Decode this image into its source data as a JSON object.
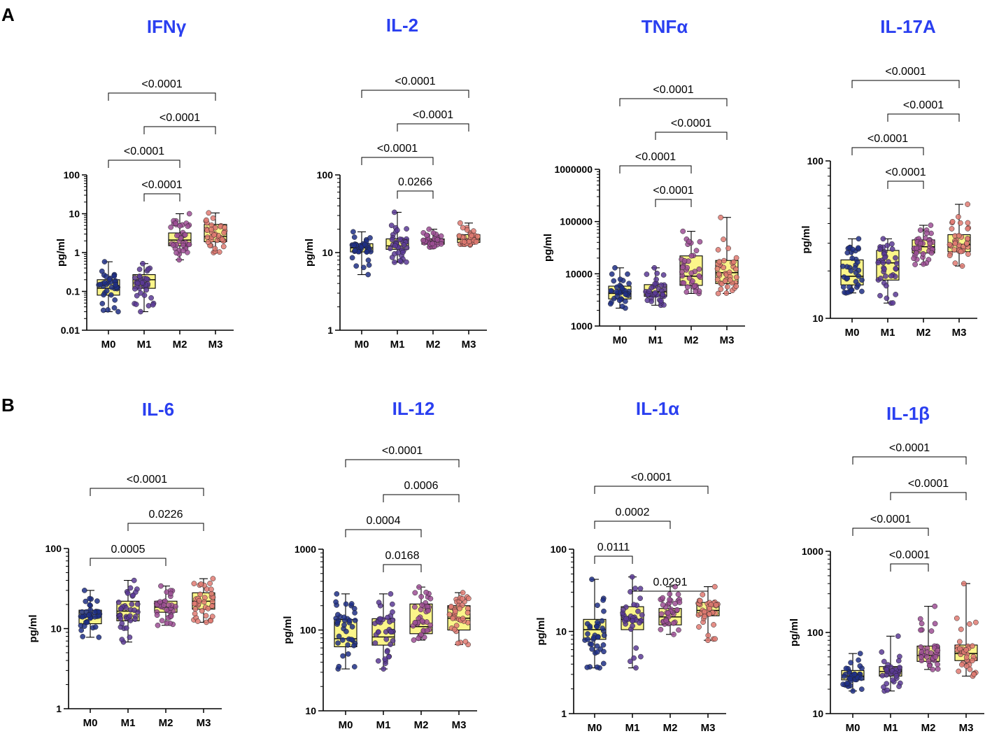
{
  "panels": [
    {
      "letter": "A"
    },
    {
      "letter": "B"
    }
  ],
  "chart_data": [
    {
      "type": "box",
      "title": "IFNγ",
      "ylabel": "pg/ml",
      "yscale": "log",
      "ylim": [
        0.01,
        100
      ],
      "yticks": [
        0.01,
        0.1,
        1,
        10,
        100
      ],
      "ytick_labels": [
        "0.01",
        "0.1",
        "1",
        "10",
        "100"
      ],
      "categories": [
        "M0",
        "M1",
        "M2",
        "M3"
      ],
      "boxes": [
        {
          "min": 0.03,
          "q1": 0.08,
          "median": 0.12,
          "q3": 0.2,
          "max": 0.58
        },
        {
          "min": 0.03,
          "q1": 0.12,
          "median": 0.2,
          "q3": 0.27,
          "max": 0.52
        },
        {
          "min": 0.65,
          "q1": 1.5,
          "median": 2.1,
          "q3": 3.2,
          "max": 10
        },
        {
          "min": 1.0,
          "q1": 1.9,
          "median": 2.6,
          "q3": 5.3,
          "max": 10.5
        }
      ],
      "comparisons": [
        {
          "from": "M0",
          "to": "M3",
          "p": "<0.0001"
        },
        {
          "from": "M1",
          "to": "M3",
          "p": "<0.0001"
        },
        {
          "from": "M0",
          "to": "M2",
          "p": "<0.0001"
        },
        {
          "from": "M1",
          "to": "M2",
          "p": "<0.0001"
        }
      ]
    },
    {
      "type": "box",
      "title": "IL-2",
      "ylabel": "pg/ml",
      "yscale": "log",
      "ylim": [
        1,
        100
      ],
      "yticks": [
        1,
        10,
        100
      ],
      "ytick_labels": [
        "1",
        "10",
        "100"
      ],
      "categories": [
        "M0",
        "M1",
        "M2",
        "M3"
      ],
      "boxes": [
        {
          "min": 5.2,
          "q1": 10.2,
          "median": 11.5,
          "q3": 13,
          "max": 18.5
        },
        {
          "min": 7.5,
          "q1": 11,
          "median": 12.2,
          "q3": 15,
          "max": 33
        },
        {
          "min": 11.8,
          "q1": 12.8,
          "median": 13.8,
          "q3": 15,
          "max": 20
        },
        {
          "min": 12.5,
          "q1": 13.5,
          "median": 14.8,
          "q3": 17,
          "max": 24
        }
      ],
      "comparisons": [
        {
          "from": "M0",
          "to": "M3",
          "p": "<0.0001"
        },
        {
          "from": "M1",
          "to": "M3",
          "p": "<0.0001"
        },
        {
          "from": "M0",
          "to": "M2",
          "p": "<0.0001"
        },
        {
          "from": "M1",
          "to": "M2",
          "p": "0.0266"
        }
      ]
    },
    {
      "type": "box",
      "title": "TNFα",
      "ylabel": "pg/ml",
      "yscale": "log",
      "ylim": [
        1000,
        1000000
      ],
      "yticks": [
        1000,
        10000,
        100000,
        1000000
      ],
      "ytick_labels": [
        "1000",
        "10000",
        "100000",
        "1000000"
      ],
      "categories": [
        "M0",
        "M1",
        "M2",
        "M3"
      ],
      "boxes": [
        {
          "min": 2200,
          "q1": 3300,
          "median": 4200,
          "q3": 5800,
          "max": 13000
        },
        {
          "min": 2500,
          "q1": 3700,
          "median": 4500,
          "q3": 6200,
          "max": 13000
        },
        {
          "min": 4200,
          "q1": 6000,
          "median": 9000,
          "q3": 22000,
          "max": 65000
        },
        {
          "min": 4200,
          "q1": 6500,
          "median": 10500,
          "q3": 18000,
          "max": 120000
        }
      ],
      "comparisons": [
        {
          "from": "M0",
          "to": "M3",
          "p": "<0.0001"
        },
        {
          "from": "M1",
          "to": "M3",
          "p": "<0.0001"
        },
        {
          "from": "M0",
          "to": "M2",
          "p": "<0.0001"
        },
        {
          "from": "M1",
          "to": "M2",
          "p": "<0.0001"
        }
      ]
    },
    {
      "type": "box",
      "title": "IL-17A",
      "ylabel": "pg/ml",
      "yscale": "log",
      "ylim": [
        10,
        100
      ],
      "yticks": [
        10,
        100
      ],
      "ytick_labels": [
        "10",
        "100"
      ],
      "categories": [
        "M0",
        "M1",
        "M2",
        "M3"
      ],
      "boxes": [
        {
          "min": 14.5,
          "q1": 16.3,
          "median": 18.5,
          "q3": 23.5,
          "max": 32
        },
        {
          "min": 12.5,
          "q1": 17.5,
          "median": 22.5,
          "q3": 27,
          "max": 32
        },
        {
          "min": 22,
          "q1": 26,
          "median": 28.5,
          "q3": 31.5,
          "max": 39
        },
        {
          "min": 21.5,
          "q1": 26.5,
          "median": 29.5,
          "q3": 34,
          "max": 53
        }
      ],
      "comparisons": [
        {
          "from": "M0",
          "to": "M3",
          "p": "<0.0001"
        },
        {
          "from": "M1",
          "to": "M3",
          "p": "<0.0001"
        },
        {
          "from": "M0",
          "to": "M2",
          "p": "<0.0001"
        },
        {
          "from": "M1",
          "to": "M2",
          "p": "<0.0001"
        }
      ]
    },
    {
      "type": "box",
      "title": "IL-6",
      "ylabel": "pg/ml",
      "yscale": "log",
      "ylim": [
        1,
        100
      ],
      "yticks": [
        1,
        10,
        100
      ],
      "ytick_labels": [
        "1",
        "10",
        "100"
      ],
      "categories": [
        "M0",
        "M1",
        "M2",
        "M3"
      ],
      "boxes": [
        {
          "min": 7.8,
          "q1": 11.5,
          "median": 14,
          "q3": 17,
          "max": 30
        },
        {
          "min": 6.8,
          "q1": 12.5,
          "median": 16.5,
          "q3": 22,
          "max": 40
        },
        {
          "min": 11,
          "q1": 16,
          "median": 18.5,
          "q3": 22,
          "max": 34
        },
        {
          "min": 12,
          "q1": 17.5,
          "median": 22,
          "q3": 28,
          "max": 42
        }
      ],
      "comparisons": [
        {
          "from": "M0",
          "to": "M3",
          "p": "<0.0001"
        },
        {
          "from": "M1",
          "to": "M3",
          "p": "0.0226"
        },
        {
          "from": "M0",
          "to": "M2",
          "p": "0.0005"
        }
      ]
    },
    {
      "type": "box",
      "title": "IL-12",
      "ylabel": "pg/ml",
      "yscale": "log",
      "ylim": [
        10,
        1000
      ],
      "yticks": [
        10,
        100,
        1000
      ],
      "ytick_labels": [
        "10",
        "100",
        "1000"
      ],
      "categories": [
        "M0",
        "M1",
        "M2",
        "M3"
      ],
      "boxes": [
        {
          "min": 33,
          "q1": 62,
          "median": 78,
          "q3": 135,
          "max": 280
        },
        {
          "min": 33,
          "q1": 65,
          "median": 82,
          "q3": 138,
          "max": 280
        },
        {
          "min": 75,
          "q1": 90,
          "median": 110,
          "q3": 210,
          "max": 340
        },
        {
          "min": 66,
          "q1": 100,
          "median": 140,
          "q3": 200,
          "max": 290
        }
      ],
      "comparisons": [
        {
          "from": "M0",
          "to": "M3",
          "p": "<0.0001"
        },
        {
          "from": "M1",
          "to": "M3",
          "p": "0.0006"
        },
        {
          "from": "M0",
          "to": "M2",
          "p": "0.0004"
        },
        {
          "from": "M1",
          "to": "M2",
          "p": "0.0168"
        }
      ]
    },
    {
      "type": "box",
      "title": "IL-1α",
      "ylabel": "pg/ml",
      "yscale": "log",
      "ylim": [
        1,
        100
      ],
      "yticks": [
        1,
        10,
        100
      ],
      "ytick_labels": [
        "1",
        "10",
        "100"
      ],
      "categories": [
        "M0",
        "M1",
        "M2",
        "M3"
      ],
      "boxes": [
        {
          "min": 3.6,
          "q1": 8,
          "median": 10.5,
          "q3": 14,
          "max": 43
        },
        {
          "min": 3.6,
          "q1": 10.5,
          "median": 14,
          "q3": 20,
          "max": 46
        },
        {
          "min": 9.2,
          "q1": 12,
          "median": 15,
          "q3": 19,
          "max": 35
        },
        {
          "min": 7.8,
          "q1": 15.5,
          "median": 18,
          "q3": 22.5,
          "max": 35
        }
      ],
      "comparisons": [
        {
          "from": "M0",
          "to": "M3",
          "p": "<0.0001"
        },
        {
          "from": "M0",
          "to": "M2",
          "p": "0.0002"
        },
        {
          "from": "M0",
          "to": "M1",
          "p": "0.0111"
        },
        {
          "from": "M1",
          "to": "M3",
          "p": "0.0291"
        }
      ]
    },
    {
      "type": "box",
      "title": "IL-1β",
      "ylabel": "pg/ml",
      "yscale": "log",
      "ylim": [
        10,
        1000
      ],
      "yticks": [
        10,
        100,
        1000
      ],
      "ytick_labels": [
        "10",
        "100",
        "1000"
      ],
      "categories": [
        "M0",
        "M1",
        "M2",
        "M3"
      ],
      "boxes": [
        {
          "min": 19,
          "q1": 26,
          "median": 29,
          "q3": 34,
          "max": 55
        },
        {
          "min": 19,
          "q1": 29,
          "median": 33,
          "q3": 38,
          "max": 90
        },
        {
          "min": 35,
          "q1": 44,
          "median": 52,
          "q3": 68,
          "max": 210
        },
        {
          "min": 29,
          "q1": 45,
          "median": 55,
          "q3": 70,
          "max": 400
        }
      ],
      "comparisons": [
        {
          "from": "M0",
          "to": "M3",
          "p": "<0.0001"
        },
        {
          "from": "M1",
          "to": "M3",
          "p": "<0.0001"
        },
        {
          "from": "M0",
          "to": "M2",
          "p": "<0.0001"
        },
        {
          "from": "M1",
          "to": "M2",
          "p": "<0.0001"
        }
      ]
    }
  ],
  "style": {
    "title_color": "#2a3ff0",
    "box_fill": "#fbf58a",
    "group_colors": [
      "#1f2f86",
      "#5a3a95",
      "#9d4f95",
      "#e07a72"
    ]
  }
}
